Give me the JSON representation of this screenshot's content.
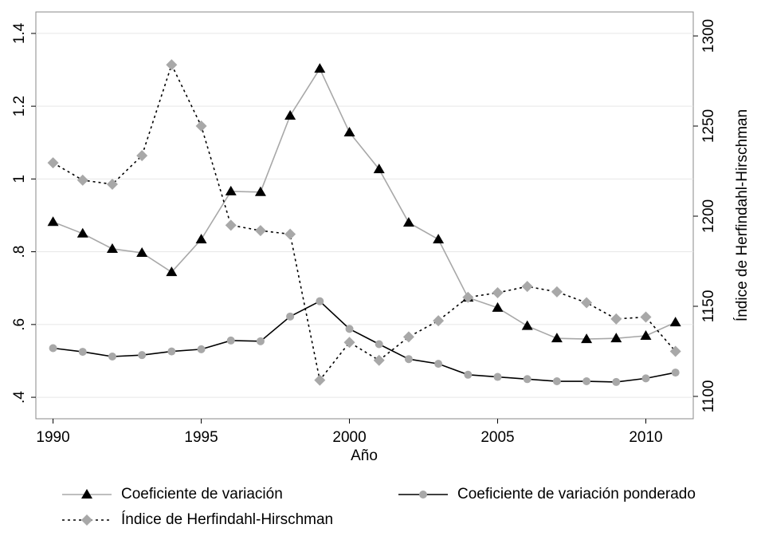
{
  "chart_data": {
    "type": "line",
    "x_label": "Año",
    "y2_label": "Índice de Herfindahl-Hirschman",
    "x": [
      1990,
      1991,
      1992,
      1993,
      1994,
      1995,
      1996,
      1997,
      1998,
      1999,
      2000,
      2001,
      2002,
      2003,
      2004,
      2005,
      2006,
      2007,
      2008,
      2009,
      2010,
      2011
    ],
    "xlim": [
      1989.42,
      2011.6
    ],
    "xticks": [
      1990,
      1995,
      2000,
      2005,
      2010
    ],
    "ylim": [
      0.341,
      1.459
    ],
    "yticks": [
      {
        "value": 0.4,
        "label": ".4"
      },
      {
        "value": 0.6,
        "label": ".6"
      },
      {
        "value": 0.8,
        "label": ".8"
      },
      1,
      1.2,
      1.4
    ],
    "y2lim": [
      1087.6,
      1313.3
    ],
    "y2ticks": [
      1100,
      1150,
      1200,
      1250,
      1300
    ],
    "grid": true,
    "legend": "bottom",
    "series": [
      {
        "name": "Coeficiente de variación",
        "color": "#a8a8a8",
        "marker": "triangle",
        "marker_color": "#000000",
        "dash": false,
        "values": [
          0.882,
          0.85,
          0.808,
          0.797,
          0.744,
          0.834,
          0.966,
          0.964,
          1.174,
          1.303,
          1.128,
          1.027,
          0.88,
          0.834,
          0.674,
          0.646,
          0.596,
          0.562,
          0.56,
          0.562,
          0.569,
          0.606
        ]
      },
      {
        "name": "Coeficiente de variación ponderado",
        "color": "#000000",
        "marker": "circle",
        "marker_color": "#a8a8a8",
        "dash": false,
        "values": [
          0.535,
          0.525,
          0.512,
          0.516,
          0.526,
          0.532,
          0.556,
          0.554,
          0.622,
          0.664,
          0.588,
          0.546,
          0.505,
          0.492,
          0.462,
          0.456,
          0.45,
          0.444,
          0.444,
          0.442,
          0.452,
          0.468
        ]
      },
      {
        "name": "Índice de Herfindahl-Hirschman",
        "color": "#000000",
        "marker": "diamond",
        "marker_color": "#a8a8a8",
        "dash": true,
        "axis": "y2",
        "values": [
          1229.6,
          1220,
          1217.7,
          1233.6,
          1284,
          1250,
          1195,
          1192,
          1190,
          1109,
          1130,
          1120,
          1133,
          1142,
          1155,
          1157.5,
          1161,
          1158,
          1152,
          1143,
          1144,
          1125
        ]
      }
    ]
  }
}
